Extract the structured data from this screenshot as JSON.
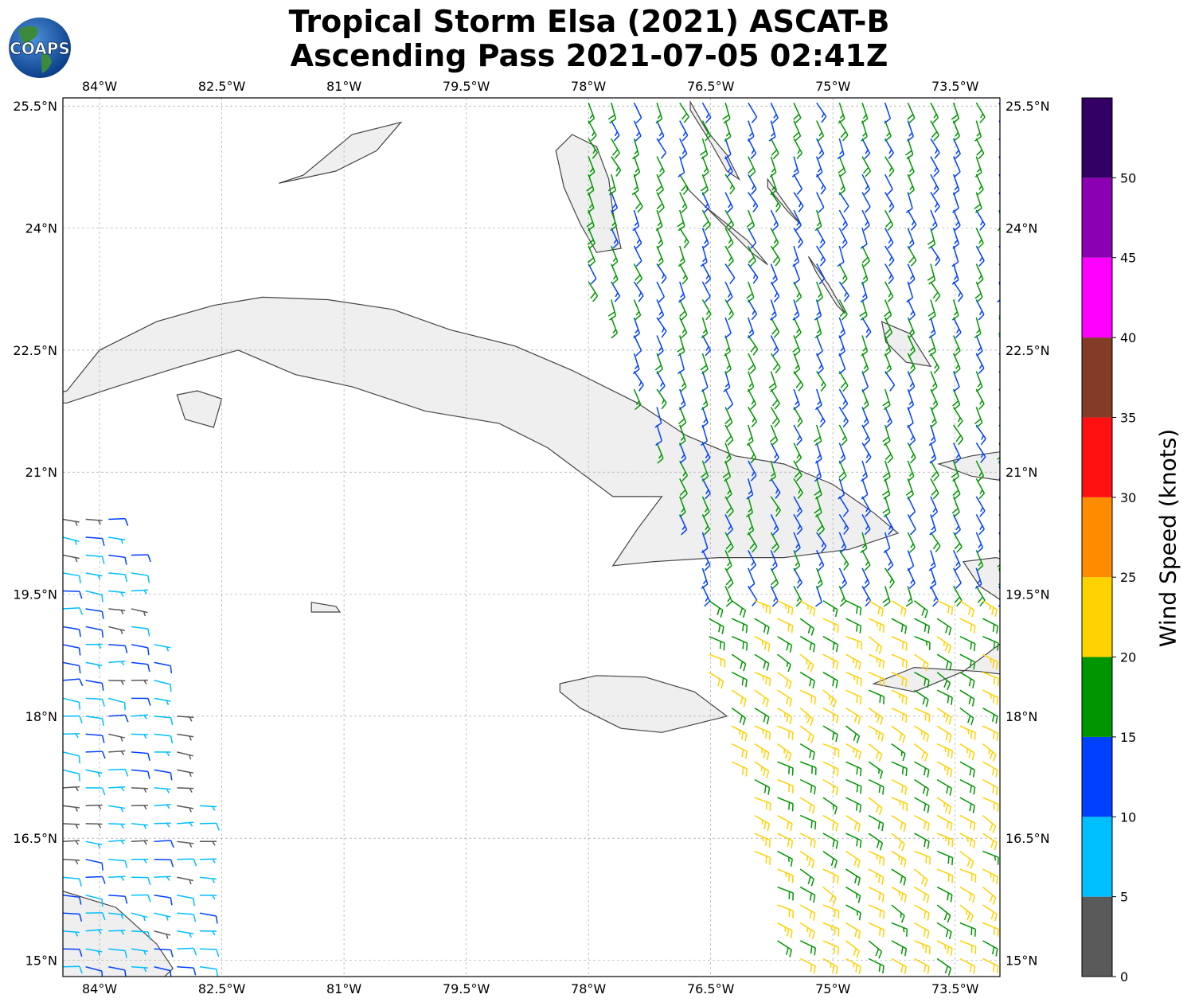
{
  "title": {
    "line1": "Tropical Storm Elsa (2021) ASCAT-B",
    "line2": "Ascending Pass 2021-07-05 02:41Z"
  },
  "logo": {
    "text": "COAPS"
  },
  "map": {
    "extent": {
      "lon_min": -84.45,
      "lon_max": -72.95,
      "lat_min": 14.8,
      "lat_max": 25.6
    },
    "lon_ticks": [
      {
        "value": -84.0,
        "label": "84°W"
      },
      {
        "value": -82.5,
        "label": "82.5°W"
      },
      {
        "value": -81.0,
        "label": "81°W"
      },
      {
        "value": -79.5,
        "label": "79.5°W"
      },
      {
        "value": -78.0,
        "label": "78°W"
      },
      {
        "value": -76.5,
        "label": "76.5°W"
      },
      {
        "value": -75.0,
        "label": "75°W"
      },
      {
        "value": -73.5,
        "label": "73.5°W"
      }
    ],
    "lat_ticks": [
      {
        "value": 25.5,
        "label": "25.5°N"
      },
      {
        "value": 24.0,
        "label": "24°N"
      },
      {
        "value": 22.5,
        "label": "22.5°N"
      },
      {
        "value": 21.0,
        "label": "21°N"
      },
      {
        "value": 19.5,
        "label": "19.5°N"
      },
      {
        "value": 18.0,
        "label": "18°N"
      },
      {
        "value": 16.5,
        "label": "16.5°N"
      },
      {
        "value": 15.0,
        "label": "15°N"
      }
    ],
    "gridlines": true,
    "coastline_color": "#444444",
    "land_shading": "#efefef",
    "grid_color": "#aaaaaa"
  },
  "colorbar": {
    "label": "Wind Speed (knots)",
    "ticks": [
      0,
      5,
      10,
      15,
      20,
      25,
      30,
      35,
      40,
      45,
      50
    ],
    "bins": [
      {
        "from": 0,
        "to": 5,
        "color": "#5a5a5a"
      },
      {
        "from": 5,
        "to": 10,
        "color": "#00bfff"
      },
      {
        "from": 10,
        "to": 15,
        "color": "#0040ff"
      },
      {
        "from": 15,
        "to": 20,
        "color": "#009600"
      },
      {
        "from": 20,
        "to": 25,
        "color": "#ffd200"
      },
      {
        "from": 25,
        "to": 30,
        "color": "#ff8c00"
      },
      {
        "from": 30,
        "to": 35,
        "color": "#ff1010"
      },
      {
        "from": 35,
        "to": 40,
        "color": "#823c28"
      },
      {
        "from": 40,
        "to": 45,
        "color": "#ff00ff"
      },
      {
        "from": 45,
        "to": 50,
        "color": "#8c00b4"
      },
      {
        "from": 50,
        "to": 55,
        "color": "#320064"
      }
    ]
  },
  "wind_swaths": [
    {
      "name": "western-swath",
      "lon_range": [
        -84.45,
        -82.6
      ],
      "lat_range": [
        14.7,
        20.5
      ],
      "dir_from_deg": 95,
      "speed_kt": 8,
      "notes_speed_variation": [
        {
          "lat_range": [
            16.3,
            18.0
          ],
          "speed_kt": 3
        }
      ]
    },
    {
      "name": "northern-swath",
      "lon_range": [
        -78.0,
        -72.95
      ],
      "lat_range": [
        19.6,
        25.6
      ],
      "dir_from_deg": 155,
      "speed_kt": 15
    },
    {
      "name": "southern-swath",
      "lon_range": [
        -76.8,
        -72.95
      ],
      "lat_range": [
        14.8,
        19.6
      ],
      "dir_from_deg": 120,
      "speed_kt": 21
    }
  ]
}
